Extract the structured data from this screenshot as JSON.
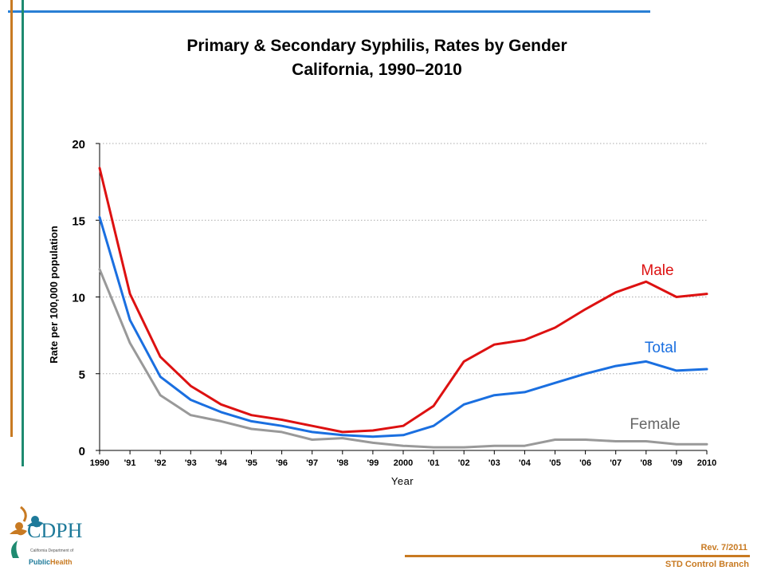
{
  "title": {
    "line1": "Primary & Secondary Syphilis, Rates by Gender",
    "line2": "California, 1990–2010"
  },
  "footer": {
    "revision": "Rev. 7/2011",
    "branch": "STD Control Branch"
  },
  "logo": {
    "name": "CDPH",
    "subtitle": "California Department of",
    "public": "Public",
    "health": "Health"
  },
  "colors": {
    "male": "#dd1111",
    "total": "#1a6fe0",
    "female": "#999999",
    "axis": "#000000",
    "grid": "#aaaaaa",
    "top_line": "#2a7fd4",
    "accent_orange": "#c87a22",
    "accent_green": "#1e8a70"
  },
  "chart_data": {
    "type": "line",
    "x": [
      1990,
      1991,
      1992,
      1993,
      1994,
      1995,
      1996,
      1997,
      1998,
      1999,
      2000,
      2001,
      2002,
      2003,
      2004,
      2005,
      2006,
      2007,
      2008,
      2009,
      2010
    ],
    "tick_labels": [
      "1990",
      "'91",
      "'92",
      "'93",
      "'94",
      "'95",
      "'96",
      "'97",
      "'98",
      "'99",
      "2000",
      "'01",
      "'02",
      "'03",
      "'04",
      "'05",
      "'06",
      "'07",
      "'08",
      "'09",
      "2010"
    ],
    "series": [
      {
        "name": "Male",
        "color": "#dd1111",
        "values": [
          18.4,
          10.2,
          6.1,
          4.2,
          3.0,
          2.3,
          2.0,
          1.6,
          1.2,
          1.3,
          1.6,
          2.9,
          5.8,
          6.9,
          7.2,
          8.0,
          9.2,
          10.3,
          11.0,
          10.0,
          10.2
        ]
      },
      {
        "name": "Total",
        "color": "#1a6fe0",
        "values": [
          15.2,
          8.5,
          4.8,
          3.3,
          2.5,
          1.9,
          1.6,
          1.2,
          1.0,
          0.9,
          1.0,
          1.6,
          3.0,
          3.6,
          3.8,
          4.4,
          5.0,
          5.5,
          5.8,
          5.2,
          5.3
        ]
      },
      {
        "name": "Female",
        "color": "#999999",
        "values": [
          11.8,
          7.0,
          3.6,
          2.3,
          1.9,
          1.4,
          1.2,
          0.7,
          0.8,
          0.5,
          0.3,
          0.2,
          0.2,
          0.3,
          0.3,
          0.7,
          0.7,
          0.6,
          0.6,
          0.4,
          0.4
        ]
      }
    ],
    "xlabel": "Year",
    "ylabel": "Rate per 100,000 population",
    "ylim": [
      0,
      20
    ],
    "yticks": [
      0,
      5,
      10,
      15,
      20
    ],
    "grid": true
  }
}
